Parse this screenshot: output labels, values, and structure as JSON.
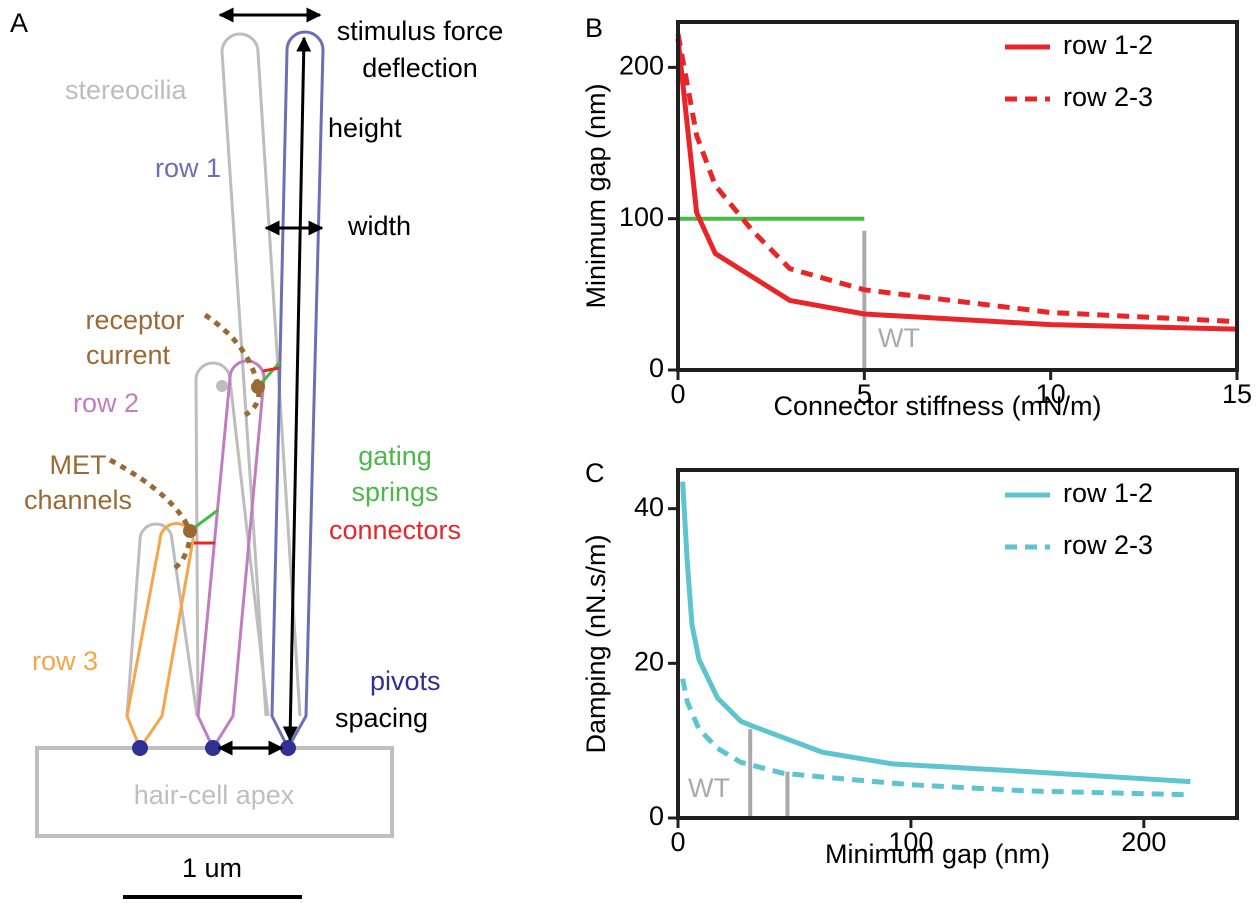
{
  "diagram": {
    "panel_label": "A",
    "stimulus": [
      "stimulus force",
      "deflection"
    ],
    "stereocilia": "stereocilia",
    "row1": "row 1",
    "height": "height",
    "width": "width",
    "receptor": [
      "receptor",
      "current"
    ],
    "row2": "row 2",
    "met": [
      "MET",
      "channels"
    ],
    "gating": [
      "gating",
      "springs"
    ],
    "connectors": "connectors",
    "row3": "row 3",
    "pivots": "pivots",
    "spacing": "spacing",
    "apex": "hair-cell apex",
    "scale": "1 um"
  },
  "chart_data": [
    {
      "type": "line",
      "panel_label": "B",
      "xlabel": "Connector stiffness (mN/m)",
      "ylabel": "Minimum gap (nm)",
      "xlim": [
        0,
        15
      ],
      "ylim": [
        0,
        230
      ],
      "xticks": [
        0,
        5,
        10,
        15
      ],
      "yticks": [
        0,
        100,
        200
      ],
      "legend": "upper right",
      "series": [
        {
          "name": "row 1-2",
          "color": "#e8262a",
          "dash": false,
          "x": [
            0,
            0.5,
            1,
            3,
            5,
            10,
            15
          ],
          "values": [
            219,
            104,
            77,
            46,
            37,
            30,
            27
          ]
        },
        {
          "name": "row 2-3",
          "color": "#e8262a",
          "dash": true,
          "x": [
            0,
            0.5,
            1,
            2,
            3,
            5,
            10,
            15
          ],
          "values": [
            222,
            155,
            122,
            92,
            67,
            53,
            38,
            32
          ]
        }
      ],
      "reference_lines": [
        {
          "color": "#4cb848",
          "x": [
            0,
            5
          ],
          "values": [
            100,
            100
          ]
        },
        {
          "color": "#aaaaaa",
          "x": [
            5,
            5
          ],
          "values": [
            0,
            92
          ]
        }
      ],
      "wt_label": "WT"
    },
    {
      "type": "line",
      "panel_label": "C",
      "xlabel": "Minimum gap (nm)",
      "ylabel": "Damping (nN.s/m)",
      "xlim": [
        0,
        240
      ],
      "ylim": [
        0,
        45
      ],
      "xticks": [
        0,
        100,
        200
      ],
      "yticks": [
        0,
        20,
        40
      ],
      "legend": "upper right",
      "series": [
        {
          "name": "row 1-2",
          "color": "#5ec5cf",
          "dash": false,
          "x": [
            2,
            4,
            6,
            9,
            17,
            27,
            31,
            62,
            92,
            150,
            220
          ],
          "values": [
            43.5,
            33,
            25,
            20.5,
            15.5,
            12.5,
            12,
            8.5,
            7,
            6,
            4.7
          ]
        },
        {
          "name": "row 2-3",
          "color": "#5ec5cf",
          "dash": true,
          "x": [
            2,
            4,
            9,
            17,
            27,
            45,
            62,
            100,
            150,
            220
          ],
          "values": [
            18,
            15,
            11.5,
            9,
            7.2,
            5.8,
            5.3,
            4.3,
            3.5,
            3
          ]
        }
      ],
      "reference_lines": [
        {
          "color": "#aaaaaa",
          "x": [
            31,
            31
          ],
          "values": [
            0,
            11.5
          ]
        },
        {
          "color": "#aaaaaa",
          "x": [
            47,
            47
          ],
          "values": [
            0,
            6
          ]
        }
      ],
      "wt_label": "WT"
    }
  ]
}
